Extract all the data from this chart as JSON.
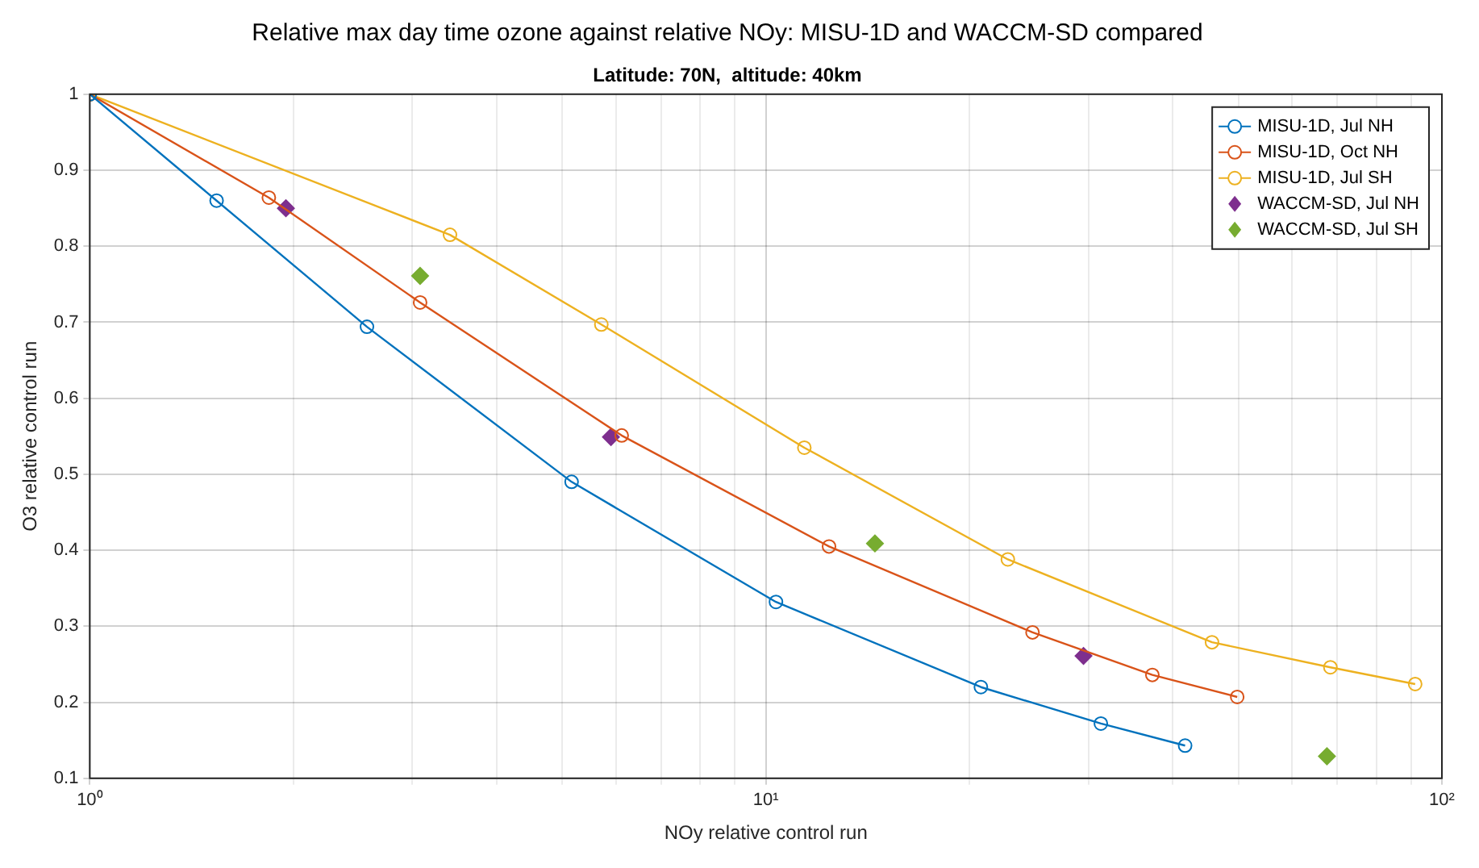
{
  "chart_data": {
    "type": "line",
    "title": "Relative max day time ozone against relative NOy: MISU-1D and WACCM-SD compared",
    "subtitle": "Latitude: 70N,  altitude: 40km",
    "xlabel": "NOy relative control run",
    "ylabel": "O3 relative control run",
    "log": "x",
    "xlim": [
      1,
      100
    ],
    "xticks": [
      {
        "value": 1,
        "label": "10⁰"
      },
      {
        "value": 2,
        "label": null
      },
      {
        "value": 3,
        "label": null
      },
      {
        "value": 4,
        "label": null
      },
      {
        "value": 5,
        "label": null
      },
      {
        "value": 6,
        "label": null
      },
      {
        "value": 7,
        "label": null
      },
      {
        "value": 8,
        "label": null
      },
      {
        "value": 9,
        "label": null
      },
      {
        "value": 10,
        "label": "10¹"
      },
      {
        "value": 20,
        "label": null
      },
      {
        "value": 30,
        "label": null
      },
      {
        "value": 40,
        "label": null
      },
      {
        "value": 50,
        "label": null
      },
      {
        "value": 60,
        "label": null
      },
      {
        "value": 70,
        "label": null
      },
      {
        "value": 80,
        "label": null
      },
      {
        "value": 90,
        "label": null
      },
      {
        "value": 100,
        "label": "10²"
      }
    ],
    "ylim": [
      0.1,
      1
    ],
    "yticks": [
      0.1,
      0.2,
      0.3,
      0.4,
      0.5,
      0.6,
      0.7,
      0.8,
      0.9,
      1
    ],
    "grid": true,
    "legend": "top right",
    "series": [
      {
        "name": "MISU-1D, Jul NH",
        "marker": "circle",
        "color": "#0072bd",
        "x": [
          1,
          1.54,
          2.57,
          5.16,
          10.35,
          20.8,
          31.3,
          41.7
        ],
        "values": [
          1,
          0.86,
          0.694,
          0.49,
          0.332,
          0.22,
          0.172,
          0.143
        ]
      },
      {
        "name": "MISU-1D, Oct NH",
        "marker": "circle",
        "color": "#d95319",
        "x": [
          1,
          1.84,
          3.08,
          6.12,
          12.4,
          24.8,
          37.3,
          49.8
        ],
        "values": [
          1,
          0.864,
          0.726,
          0.551,
          0.405,
          0.292,
          0.236,
          0.207
        ]
      },
      {
        "name": "MISU-1D, Jul SH",
        "marker": "circle",
        "color": "#edb120",
        "x": [
          1,
          3.41,
          5.71,
          11.4,
          22.8,
          45.7,
          68.4,
          91.3
        ],
        "values": [
          1,
          0.815,
          0.697,
          0.535,
          0.388,
          0.279,
          0.246,
          0.224
        ]
      },
      {
        "name": "WACCM-SD, Jul NH",
        "type": "scatter",
        "marker": "diamond",
        "color": "#7e2f8e",
        "x": [
          1.95,
          5.9,
          29.5
        ],
        "values": [
          0.85,
          0.549,
          0.261
        ]
      },
      {
        "name": "WACCM-SD, Jul SH",
        "type": "scatter",
        "marker": "diamond",
        "color": "#77ac30",
        "x": [
          3.08,
          14.5,
          67.6
        ],
        "values": [
          0.761,
          0.409,
          0.129
        ]
      }
    ]
  }
}
